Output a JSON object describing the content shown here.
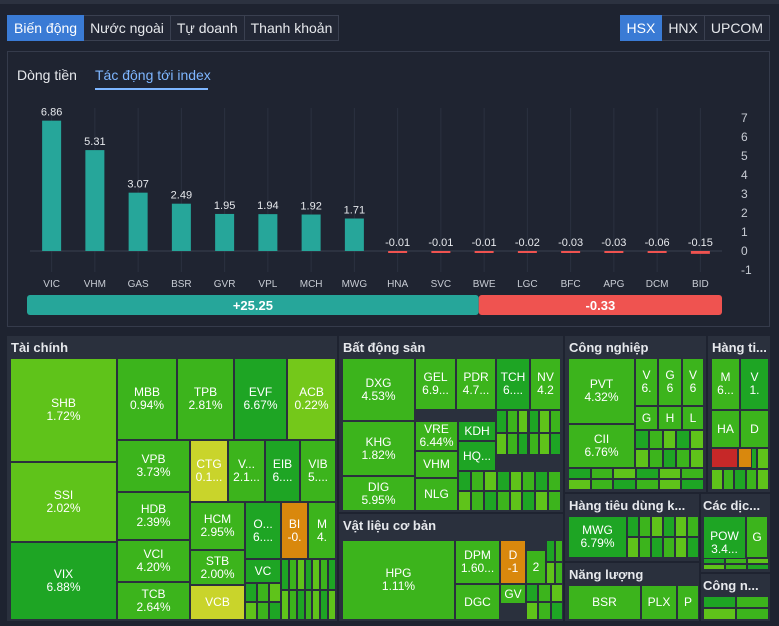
{
  "tabs": [
    "Biến động",
    "Nước ngoài",
    "Tự doanh",
    "Thanh khoản"
  ],
  "exchanges": [
    "HSX",
    "HNX",
    "UPCOM"
  ],
  "subtabs": [
    "Dòng tiền",
    "Tác động tới index"
  ],
  "colors": {
    "up": "#26a69a",
    "down": "#ef5350",
    "accent": "#3a7bd5"
  },
  "chart_data": {
    "type": "bar",
    "categories": [
      "VIC",
      "VHM",
      "GAS",
      "BSR",
      "GVR",
      "VPL",
      "MCH",
      "MWG",
      "HNA",
      "SVC",
      "BWE",
      "LGC",
      "BFC",
      "APG",
      "DCM",
      "BID"
    ],
    "values": [
      6.86,
      5.31,
      3.07,
      2.49,
      1.95,
      1.94,
      1.92,
      1.71,
      -0.01,
      -0.01,
      -0.01,
      -0.02,
      -0.03,
      -0.03,
      -0.06,
      -0.15
    ],
    "labels": [
      "6.86",
      "5.31",
      "3.07",
      "2.49",
      "1.95",
      "1.94",
      "1.92",
      "1.71",
      "-0.01",
      "-0.01",
      "-0.01",
      "-0.02",
      "-0.03",
      "-0.03",
      "-0.06",
      "-0.15"
    ],
    "yticks": [
      "7",
      "6",
      "5",
      "4",
      "3",
      "2",
      "1",
      "0",
      "-1"
    ],
    "ylim": [
      -1,
      7
    ],
    "positive_total": "+25.25",
    "negative_total": "-0.33",
    "positive_fraction": 0.65
  },
  "treemap": {
    "sections": [
      "Tài chính",
      "Bất động sản",
      "Công nghiệp",
      "Hàng ti...",
      "Vật liệu cơ bản",
      "Hàng tiêu dùng k...",
      "Các dịc...",
      "Năng lượng",
      "Công n..."
    ],
    "cells": [
      [
        "SHB",
        "1.72%"
      ],
      [
        "SSI",
        "2.02%"
      ],
      [
        "VIX",
        "6.88%"
      ],
      [
        "MBB",
        "0.94%"
      ],
      [
        "TPB",
        "2.81%"
      ],
      [
        "EVF",
        "6.67%"
      ],
      [
        "ACB",
        "0.22%"
      ],
      [
        "VPB",
        "3.73%"
      ],
      [
        "CTG",
        "0.1..."
      ],
      [
        "V...",
        "2.1..."
      ],
      [
        "EIB",
        "6...."
      ],
      [
        "VIB",
        "5...."
      ],
      [
        "HDB",
        "2.39%"
      ],
      [
        "HCM",
        "2.95%"
      ],
      [
        "O...",
        "6...."
      ],
      [
        "BI",
        "-0."
      ],
      [
        "M",
        "4."
      ],
      [
        "VCI",
        "4.20%"
      ],
      [
        "STB",
        "2.00%"
      ],
      [
        "VC",
        ""
      ],
      [
        "TCB",
        "2.64%"
      ],
      [
        "VCB",
        ""
      ],
      [
        "DXG",
        "4.53%"
      ],
      [
        "GEL",
        "6.9..."
      ],
      [
        "PDR",
        "4.7..."
      ],
      [
        "TCH",
        "6...."
      ],
      [
        "NV",
        "4.2"
      ],
      [
        "KHG",
        "1.82%"
      ],
      [
        "VRE",
        "6.44%"
      ],
      [
        "KDH",
        ""
      ],
      [
        "VHM",
        ""
      ],
      [
        "HQ...",
        ""
      ],
      [
        "DIG",
        "5.95%"
      ],
      [
        "NLG",
        ""
      ],
      [
        "HPG",
        "1.11%"
      ],
      [
        "DPM",
        "1.60..."
      ],
      [
        "D",
        "-1"
      ],
      [
        "2",
        ""
      ],
      [
        "DGC",
        ""
      ],
      [
        "GV",
        ""
      ],
      [
        "PVT",
        "4.32%"
      ],
      [
        "V",
        "6."
      ],
      [
        "G",
        "6"
      ],
      [
        "V",
        "6"
      ],
      [
        "CII",
        "6.76%"
      ],
      [
        "G",
        ""
      ],
      [
        "H",
        ""
      ],
      [
        "L",
        ""
      ],
      [
        "M",
        "6..."
      ],
      [
        "V",
        "1."
      ],
      [
        "HA",
        ""
      ],
      [
        "D",
        ""
      ],
      [
        "MWG",
        "6.79%"
      ],
      [
        "POW",
        "3.4..."
      ],
      [
        "G",
        ""
      ],
      [
        "BSR",
        ""
      ],
      [
        "PLX",
        ""
      ],
      [
        "P",
        ""
      ]
    ]
  }
}
